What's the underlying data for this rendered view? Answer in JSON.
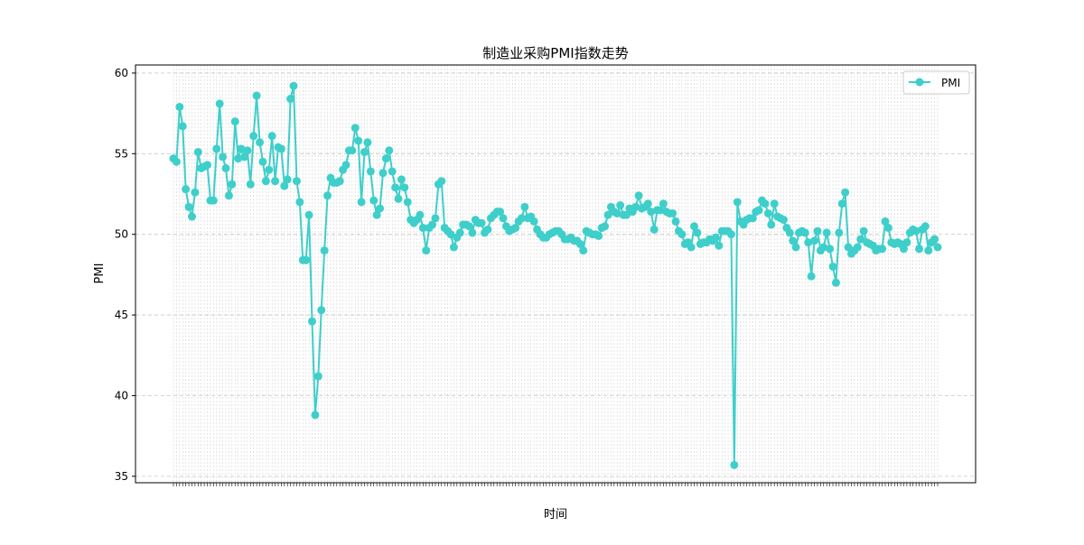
{
  "chart_data": {
    "type": "line",
    "title": "制造业采购PMI指数走势",
    "xlabel": "时间",
    "ylabel": "PMI",
    "y_ticks": [
      35,
      40,
      45,
      50,
      55,
      60
    ],
    "ylim": [
      34.6,
      60.5
    ],
    "grid": true,
    "legend_position": "top-right",
    "color": "#3ecfca",
    "series": [
      {
        "name": "PMI",
        "values": [
          54.7,
          54.5,
          57.9,
          56.7,
          52.8,
          51.7,
          51.1,
          52.6,
          55.1,
          54.1,
          54.2,
          54.3,
          52.1,
          52.1,
          55.3,
          58.1,
          54.8,
          54.1,
          52.4,
          53.1,
          57.0,
          54.7,
          55.3,
          54.8,
          55.2,
          53.1,
          56.1,
          58.6,
          55.7,
          54.5,
          53.3,
          54.0,
          56.1,
          53.3,
          55.4,
          55.3,
          53.0,
          53.4,
          58.4,
          59.2,
          53.3,
          52.0,
          48.4,
          48.4,
          51.2,
          44.6,
          38.8,
          41.2,
          45.3,
          49.0,
          52.4,
          53.5,
          53.2,
          53.2,
          53.3,
          54.0,
          54.3,
          55.2,
          55.2,
          56.6,
          55.8,
          52.0,
          55.1,
          55.7,
          53.9,
          52.1,
          51.2,
          51.6,
          53.8,
          54.7,
          55.2,
          53.9,
          52.9,
          52.2,
          53.4,
          52.9,
          52.0,
          50.9,
          50.7,
          50.9,
          51.2,
          50.4,
          49.0,
          50.4,
          50.6,
          51.0,
          53.1,
          53.3,
          50.4,
          50.2,
          50.0,
          49.2,
          49.8,
          50.1,
          50.6,
          50.6,
          50.5,
          50.1,
          50.9,
          50.7,
          50.7,
          50.1,
          50.3,
          51.0,
          51.2,
          51.4,
          51.4,
          51.0,
          50.5,
          50.2,
          50.3,
          50.4,
          50.8,
          51.0,
          51.7,
          51.0,
          51.1,
          50.8,
          50.3,
          50.0,
          49.8,
          49.8,
          50.0,
          50.1,
          50.2,
          50.2,
          50.0,
          49.7,
          49.7,
          49.8,
          49.6,
          49.6,
          49.4,
          49.0,
          50.2,
          50.1,
          50.0,
          50.0,
          49.9,
          50.4,
          50.5,
          51.2,
          51.7,
          51.4,
          51.3,
          51.8,
          51.2,
          51.2,
          51.6,
          51.4,
          51.7,
          52.4,
          51.6,
          51.7,
          51.9,
          51.4,
          50.3,
          51.5,
          51.5,
          51.9,
          51.4,
          51.3,
          51.3,
          50.8,
          50.2,
          50.0,
          49.4,
          49.5,
          49.2,
          50.5,
          50.1,
          49.4,
          49.5,
          49.5,
          49.7,
          49.6,
          49.8,
          49.3,
          50.2,
          50.2,
          50.2,
          50.0,
          35.7,
          52.0,
          50.8,
          50.6,
          50.9,
          51.0,
          51.0,
          51.4,
          51.5,
          52.1,
          51.9,
          51.3,
          50.6,
          51.9,
          51.1,
          51.0,
          50.9,
          50.4,
          50.1,
          49.6,
          49.2,
          50.1,
          50.2,
          50.1,
          49.5,
          47.4,
          49.6,
          50.2,
          49.0,
          49.2,
          50.1,
          49.1,
          48.0,
          47.0,
          50.1,
          51.9,
          52.6,
          49.2,
          48.8,
          49.0,
          49.2,
          49.7,
          50.2,
          49.5,
          49.4,
          49.3,
          49.0,
          49.1,
          49.1,
          50.8,
          50.4,
          49.5,
          49.4,
          49.5,
          49.4,
          49.1,
          49.5,
          50.1,
          50.3,
          50.2,
          49.1,
          50.3,
          50.5,
          49.0,
          49.5,
          49.7,
          49.2
        ]
      }
    ]
  }
}
